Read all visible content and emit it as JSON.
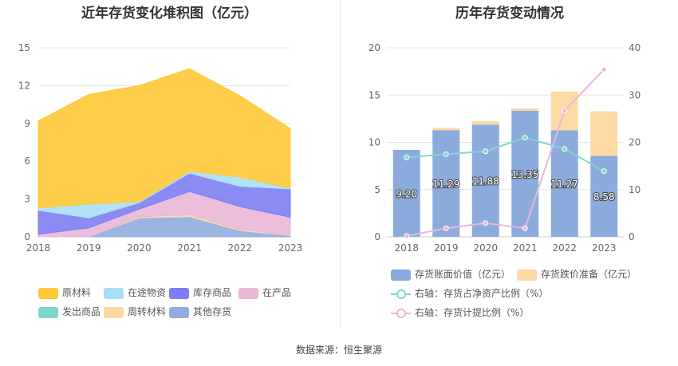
{
  "source": "数据来源：恒生聚源",
  "colors": {
    "raw_material": "#fec937",
    "in_transit": "#a9dff6",
    "stock_goods": "#7d7ef2",
    "wip": "#eab7d8",
    "shipped": "#7fd6d1",
    "turnover": "#fdd9a3",
    "other": "#8fadde",
    "bar_book": "#8cabdd",
    "bar_reserve": "#fdd9a3",
    "line_ratio": "#7fd6d1",
    "line_provision": "#eab7d8"
  },
  "chart_data": [
    {
      "type": "area",
      "title": "近年存货变化堆积图（亿元）",
      "x": [
        "2018",
        "2019",
        "2020",
        "2021",
        "2022",
        "2023"
      ],
      "ylim": [
        0,
        15
      ],
      "yticks": [
        "0",
        "3",
        "6",
        "9",
        "12",
        "15"
      ],
      "stacked": true,
      "series": [
        {
          "name": "其他存货",
          "key": "other",
          "values": [
            0.0,
            0.0,
            1.5,
            1.6,
            0.5,
            0.1
          ]
        },
        {
          "name": "周转材料",
          "key": "turnover",
          "values": [
            0.0,
            0.0,
            0.1,
            0.15,
            0.1,
            0.05
          ]
        },
        {
          "name": "发出商品",
          "key": "shipped",
          "values": [
            0.0,
            0.0,
            0.0,
            0.0,
            0.0,
            0.0
          ]
        },
        {
          "name": "在产品",
          "key": "wip",
          "values": [
            0.2,
            0.7,
            0.6,
            1.85,
            1.8,
            1.4
          ]
        },
        {
          "name": "库存商品",
          "key": "stock_goods",
          "values": [
            1.9,
            0.8,
            0.5,
            1.45,
            1.6,
            2.25
          ]
        },
        {
          "name": "在途物资",
          "key": "in_transit",
          "values": [
            0.2,
            1.1,
            0.1,
            0.15,
            0.75,
            0.05
          ]
        },
        {
          "name": "原材料",
          "key": "raw_material",
          "values": [
            6.9,
            8.7,
            9.2,
            8.15,
            6.45,
            4.75
          ]
        }
      ],
      "legend": [
        {
          "name": "原材料",
          "key": "raw_material"
        },
        {
          "name": "在途物资",
          "key": "in_transit"
        },
        {
          "name": "库存商品",
          "key": "stock_goods"
        },
        {
          "name": "在产品",
          "key": "wip"
        },
        {
          "name": "发出商品",
          "key": "shipped"
        },
        {
          "name": "周转材料",
          "key": "turnover"
        },
        {
          "name": "其他存货",
          "key": "other"
        }
      ]
    },
    {
      "type": "bar",
      "title": "历年存货变动情况",
      "categories": [
        "2018",
        "2019",
        "2020",
        "2021",
        "2022",
        "2023"
      ],
      "ylim_left": [
        0,
        20
      ],
      "yticks_left": [
        "0",
        "5",
        "10",
        "15",
        "20"
      ],
      "ylim_right": [
        0,
        40
      ],
      "yticks_right": [
        "0",
        "10",
        "20",
        "30",
        "40"
      ],
      "series": [
        {
          "name": "存货账面价值（亿元）",
          "key": "bar_book",
          "axis": "left",
          "stack": true,
          "values": [
            9.2,
            11.29,
            11.88,
            13.35,
            11.27,
            8.58
          ],
          "labels": [
            "9.20",
            "11.29",
            "11.88",
            "13.35",
            "11.27",
            "8.58"
          ]
        },
        {
          "name": "存货跌价准备（亿元）",
          "key": "bar_reserve",
          "axis": "left",
          "stack": true,
          "values": [
            0.0,
            0.25,
            0.35,
            0.25,
            4.1,
            4.7
          ]
        },
        {
          "name": "右轴：存货占净资产比例（%）",
          "key": "line_ratio",
          "axis": "right",
          "type": "line",
          "values": [
            16.8,
            17.5,
            18.1,
            21.0,
            18.6,
            13.9
          ]
        },
        {
          "name": "右轴：存货计提比例（%）",
          "key": "line_provision",
          "axis": "right",
          "type": "line",
          "values": [
            0.2,
            1.8,
            2.9,
            1.8,
            26.7,
            35.4
          ]
        }
      ]
    }
  ]
}
